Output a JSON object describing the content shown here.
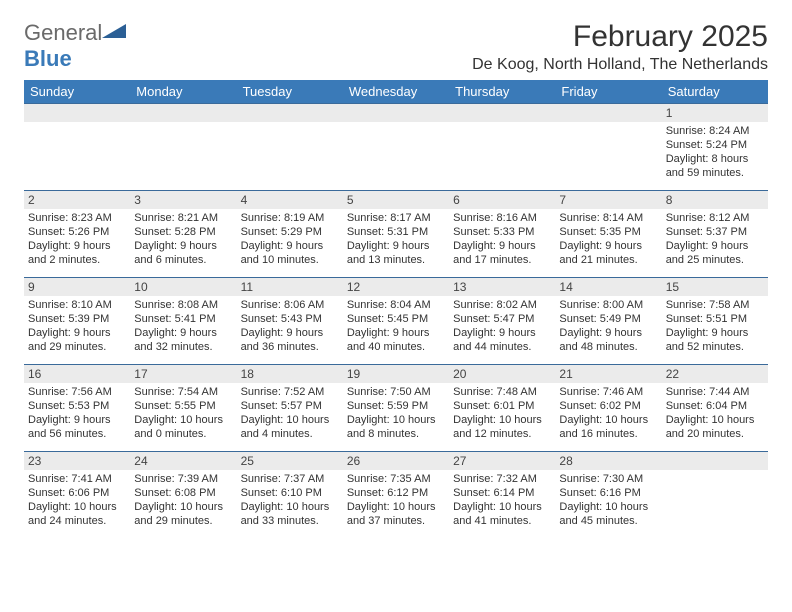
{
  "logo": {
    "text1": "General",
    "text2": "Blue"
  },
  "title": "February 2025",
  "location": "De Koog, North Holland, The Netherlands",
  "day_headers": [
    "Sunday",
    "Monday",
    "Tuesday",
    "Wednesday",
    "Thursday",
    "Friday",
    "Saturday"
  ],
  "colors": {
    "header_bg": "#3a7ab8",
    "header_fg": "#ffffff",
    "daynum_bg": "#ebebeb",
    "border": "#3a6a9a",
    "text": "#333333"
  },
  "weeks": [
    [
      {
        "num": "",
        "sunrise": "",
        "sunset": "",
        "daylight": ""
      },
      {
        "num": "",
        "sunrise": "",
        "sunset": "",
        "daylight": ""
      },
      {
        "num": "",
        "sunrise": "",
        "sunset": "",
        "daylight": ""
      },
      {
        "num": "",
        "sunrise": "",
        "sunset": "",
        "daylight": ""
      },
      {
        "num": "",
        "sunrise": "",
        "sunset": "",
        "daylight": ""
      },
      {
        "num": "",
        "sunrise": "",
        "sunset": "",
        "daylight": ""
      },
      {
        "num": "1",
        "sunrise": "Sunrise: 8:24 AM",
        "sunset": "Sunset: 5:24 PM",
        "daylight": "Daylight: 8 hours and 59 minutes."
      }
    ],
    [
      {
        "num": "2",
        "sunrise": "Sunrise: 8:23 AM",
        "sunset": "Sunset: 5:26 PM",
        "daylight": "Daylight: 9 hours and 2 minutes."
      },
      {
        "num": "3",
        "sunrise": "Sunrise: 8:21 AM",
        "sunset": "Sunset: 5:28 PM",
        "daylight": "Daylight: 9 hours and 6 minutes."
      },
      {
        "num": "4",
        "sunrise": "Sunrise: 8:19 AM",
        "sunset": "Sunset: 5:29 PM",
        "daylight": "Daylight: 9 hours and 10 minutes."
      },
      {
        "num": "5",
        "sunrise": "Sunrise: 8:17 AM",
        "sunset": "Sunset: 5:31 PM",
        "daylight": "Daylight: 9 hours and 13 minutes."
      },
      {
        "num": "6",
        "sunrise": "Sunrise: 8:16 AM",
        "sunset": "Sunset: 5:33 PM",
        "daylight": "Daylight: 9 hours and 17 minutes."
      },
      {
        "num": "7",
        "sunrise": "Sunrise: 8:14 AM",
        "sunset": "Sunset: 5:35 PM",
        "daylight": "Daylight: 9 hours and 21 minutes."
      },
      {
        "num": "8",
        "sunrise": "Sunrise: 8:12 AM",
        "sunset": "Sunset: 5:37 PM",
        "daylight": "Daylight: 9 hours and 25 minutes."
      }
    ],
    [
      {
        "num": "9",
        "sunrise": "Sunrise: 8:10 AM",
        "sunset": "Sunset: 5:39 PM",
        "daylight": "Daylight: 9 hours and 29 minutes."
      },
      {
        "num": "10",
        "sunrise": "Sunrise: 8:08 AM",
        "sunset": "Sunset: 5:41 PM",
        "daylight": "Daylight: 9 hours and 32 minutes."
      },
      {
        "num": "11",
        "sunrise": "Sunrise: 8:06 AM",
        "sunset": "Sunset: 5:43 PM",
        "daylight": "Daylight: 9 hours and 36 minutes."
      },
      {
        "num": "12",
        "sunrise": "Sunrise: 8:04 AM",
        "sunset": "Sunset: 5:45 PM",
        "daylight": "Daylight: 9 hours and 40 minutes."
      },
      {
        "num": "13",
        "sunrise": "Sunrise: 8:02 AM",
        "sunset": "Sunset: 5:47 PM",
        "daylight": "Daylight: 9 hours and 44 minutes."
      },
      {
        "num": "14",
        "sunrise": "Sunrise: 8:00 AM",
        "sunset": "Sunset: 5:49 PM",
        "daylight": "Daylight: 9 hours and 48 minutes."
      },
      {
        "num": "15",
        "sunrise": "Sunrise: 7:58 AM",
        "sunset": "Sunset: 5:51 PM",
        "daylight": "Daylight: 9 hours and 52 minutes."
      }
    ],
    [
      {
        "num": "16",
        "sunrise": "Sunrise: 7:56 AM",
        "sunset": "Sunset: 5:53 PM",
        "daylight": "Daylight: 9 hours and 56 minutes."
      },
      {
        "num": "17",
        "sunrise": "Sunrise: 7:54 AM",
        "sunset": "Sunset: 5:55 PM",
        "daylight": "Daylight: 10 hours and 0 minutes."
      },
      {
        "num": "18",
        "sunrise": "Sunrise: 7:52 AM",
        "sunset": "Sunset: 5:57 PM",
        "daylight": "Daylight: 10 hours and 4 minutes."
      },
      {
        "num": "19",
        "sunrise": "Sunrise: 7:50 AM",
        "sunset": "Sunset: 5:59 PM",
        "daylight": "Daylight: 10 hours and 8 minutes."
      },
      {
        "num": "20",
        "sunrise": "Sunrise: 7:48 AM",
        "sunset": "Sunset: 6:01 PM",
        "daylight": "Daylight: 10 hours and 12 minutes."
      },
      {
        "num": "21",
        "sunrise": "Sunrise: 7:46 AM",
        "sunset": "Sunset: 6:02 PM",
        "daylight": "Daylight: 10 hours and 16 minutes."
      },
      {
        "num": "22",
        "sunrise": "Sunrise: 7:44 AM",
        "sunset": "Sunset: 6:04 PM",
        "daylight": "Daylight: 10 hours and 20 minutes."
      }
    ],
    [
      {
        "num": "23",
        "sunrise": "Sunrise: 7:41 AM",
        "sunset": "Sunset: 6:06 PM",
        "daylight": "Daylight: 10 hours and 24 minutes."
      },
      {
        "num": "24",
        "sunrise": "Sunrise: 7:39 AM",
        "sunset": "Sunset: 6:08 PM",
        "daylight": "Daylight: 10 hours and 29 minutes."
      },
      {
        "num": "25",
        "sunrise": "Sunrise: 7:37 AM",
        "sunset": "Sunset: 6:10 PM",
        "daylight": "Daylight: 10 hours and 33 minutes."
      },
      {
        "num": "26",
        "sunrise": "Sunrise: 7:35 AM",
        "sunset": "Sunset: 6:12 PM",
        "daylight": "Daylight: 10 hours and 37 minutes."
      },
      {
        "num": "27",
        "sunrise": "Sunrise: 7:32 AM",
        "sunset": "Sunset: 6:14 PM",
        "daylight": "Daylight: 10 hours and 41 minutes."
      },
      {
        "num": "28",
        "sunrise": "Sunrise: 7:30 AM",
        "sunset": "Sunset: 6:16 PM",
        "daylight": "Daylight: 10 hours and 45 minutes."
      },
      {
        "num": "",
        "sunrise": "",
        "sunset": "",
        "daylight": ""
      }
    ]
  ]
}
